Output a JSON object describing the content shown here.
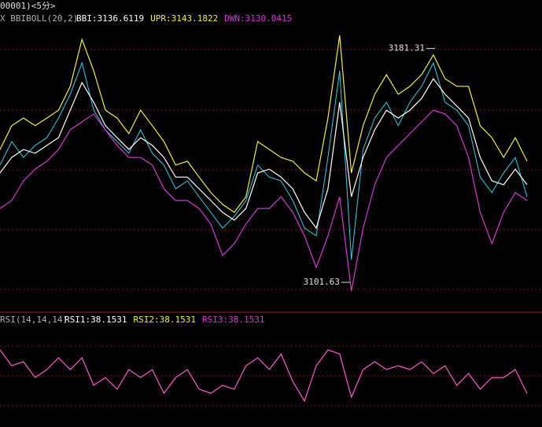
{
  "chart_data": [
    {
      "type": "line",
      "title": "00001)<5分>",
      "indicator": "X BBIBOLL(20,2)",
      "ylim": [
        3092,
        3193
      ],
      "series": [
        {
          "color": "#35d0e8",
          "values": [
            3141.6,
            3149.6,
            3144.2,
            3148.3,
            3150.9,
            3157.6,
            3165.7,
            3176.4,
            3160.3,
            3153.6,
            3149.6,
            3145.6,
            3153.6,
            3145.6,
            3141.6,
            3133.5,
            3136.2,
            3130.8,
            3125.5,
            3120.1,
            3124.1,
            3129.5,
            3141.6,
            3137.5,
            3136.2,
            3129.5,
            3120.1,
            3117.5,
            3144.2,
            3173.7,
            3109.4,
            3146.9,
            3157.6,
            3163.0,
            3155.0,
            3163.0,
            3168.4,
            3176.4,
            3163.0,
            3160.3,
            3155.0,
            3137.5,
            3132.2,
            3138.9,
            3144.2,
            3130.8
          ]
        },
        {
          "name": "DWN:3130.0415",
          "color": "#d63ad6",
          "values": [
            3126.8,
            3129.5,
            3136.2,
            3140.2,
            3142.9,
            3146.9,
            3153.6,
            3156.3,
            3159.0,
            3153.6,
            3148.3,
            3144.2,
            3144.2,
            3141.6,
            3133.5,
            3129.5,
            3129.5,
            3126.8,
            3121.5,
            3110.8,
            3114.8,
            3121.5,
            3126.8,
            3126.8,
            3130.8,
            3125.5,
            3117.5,
            3106.7,
            3117.5,
            3130.8,
            3098.7,
            3120.1,
            3134.9,
            3144.2,
            3148.3,
            3152.3,
            3156.3,
            3160.3,
            3159.0,
            3155.0,
            3144.2,
            3125.5,
            3114.8,
            3125.5,
            3132.2,
            3129.5
          ]
        },
        {
          "name": "BBI:3136.6119",
          "color": "#ffffff",
          "values": [
            3138.9,
            3144.2,
            3146.9,
            3145.6,
            3148.3,
            3150.9,
            3160.3,
            3169.7,
            3163.0,
            3155.0,
            3150.9,
            3146.9,
            3150.9,
            3148.3,
            3144.2,
            3137.5,
            3137.5,
            3133.5,
            3129.5,
            3125.5,
            3122.8,
            3126.8,
            3138.9,
            3140.2,
            3137.5,
            3133.5,
            3125.5,
            3120.1,
            3133.5,
            3163.0,
            3130.8,
            3144.2,
            3153.6,
            3160.3,
            3157.6,
            3160.3,
            3164.3,
            3171.0,
            3165.7,
            3161.7,
            3157.6,
            3144.2,
            3136.2,
            3134.9,
            3140.2,
            3134.9
          ]
        },
        {
          "name": "UPR:3143.1822",
          "color": "#f0f040",
          "values": [
            3146.9,
            3155.0,
            3157.6,
            3155.0,
            3157.6,
            3160.3,
            3168.4,
            3184.4,
            3173.7,
            3160.3,
            3157.6,
            3152.3,
            3160.3,
            3155.0,
            3149.6,
            3141.6,
            3142.9,
            3137.5,
            3132.2,
            3128.2,
            3125.5,
            3130.8,
            3149.6,
            3146.9,
            3144.2,
            3142.9,
            3138.9,
            3136.2,
            3157.6,
            3185.8,
            3138.9,
            3155.0,
            3165.7,
            3172.4,
            3165.7,
            3168.4,
            3172.4,
            3179.1,
            3171.0,
            3168.4,
            3168.4,
            3155.0,
            3150.9,
            3144.2,
            3150.9,
            3142.9
          ]
        }
      ],
      "annotations": [
        3181.31,
        3101.63
      ]
    },
    {
      "type": "line",
      "indicator": "RSI(14,14,14)",
      "ylim": [
        17.4,
        84.2
      ],
      "legend": [
        {
          "label": "RSI1:38.1531",
          "color": "#ffffff"
        },
        {
          "label": "RSI2:38.1531",
          "color": "#f0f040"
        },
        {
          "label": "RSI3:38.1531",
          "color": "#d63ad6"
        }
      ],
      "color": "#ff5ccd",
      "values": [
        67.4,
        56.8,
        59.5,
        48.9,
        54.2,
        62.1,
        54.2,
        62.1,
        43.7,
        48.9,
        41.1,
        54.2,
        48.9,
        54.2,
        38.4,
        48.9,
        54.2,
        41.1,
        38.4,
        43.7,
        41.1,
        56.8,
        62.1,
        54.2,
        64.7,
        46.3,
        33.2,
        56.8,
        67.4,
        64.7,
        35.8,
        54.2,
        59.5,
        54.2,
        56.8,
        54.2,
        59.5,
        51.6,
        56.8,
        43.7,
        51.6,
        41.1,
        48.9,
        48.9,
        54.2,
        38.2
      ]
    }
  ]
}
